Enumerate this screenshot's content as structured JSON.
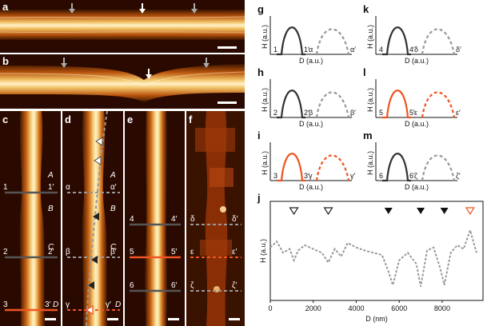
{
  "panels": {
    "a": {
      "label": "a"
    },
    "b": {
      "label": "b"
    },
    "c": {
      "label": "c",
      "marks": [
        "A",
        "B",
        "C",
        "D"
      ],
      "lines": [
        [
          "1",
          "1′"
        ],
        [
          "2",
          "2′"
        ],
        [
          "3",
          "3′"
        ]
      ]
    },
    "d": {
      "label": "d",
      "marks": [
        "A",
        "B",
        "C",
        "D"
      ],
      "lines": [
        [
          "α",
          "α′"
        ],
        [
          "β",
          "β′"
        ],
        [
          "γ",
          "γ′"
        ]
      ]
    },
    "e": {
      "label": "e",
      "lines": [
        [
          "4",
          "4′"
        ],
        [
          "5",
          "5′"
        ],
        [
          "6",
          "6′"
        ]
      ]
    },
    "f": {
      "label": "f",
      "lines": [
        [
          "δ",
          "δ′"
        ],
        [
          "ε",
          "ε′"
        ],
        [
          "ζ",
          "ζ′"
        ]
      ]
    }
  },
  "profiles": [
    {
      "label": "g",
      "solid": "1",
      "solid_end": "1′",
      "dashed": "α",
      "dashed_end": "α′",
      "solid_color": "#333333",
      "dashed_color": "#999999",
      "ylabel": "H (a.u.)",
      "xlabel": "D (a.u.)"
    },
    {
      "label": "h",
      "solid": "2",
      "solid_end": "2′",
      "dashed": "β",
      "dashed_end": "β′",
      "solid_color": "#333333",
      "dashed_color": "#999999",
      "ylabel": "H (a.u.)",
      "xlabel": "D (a.u.)"
    },
    {
      "label": "i",
      "solid": "3",
      "solid_end": "3′",
      "dashed": "γ",
      "dashed_end": "γ′",
      "solid_color": "#ee5522",
      "dashed_color": "#ee5522",
      "ylabel": "H (a.u.)",
      "xlabel": "D (a.u.)"
    },
    {
      "label": "k",
      "solid": "4",
      "solid_end": "4′",
      "dashed": "δ",
      "dashed_end": "δ′",
      "solid_color": "#333333",
      "dashed_color": "#999999",
      "ylabel": "H (a.u.)",
      "xlabel": "D (a.u.)"
    },
    {
      "label": "l",
      "solid": "5",
      "solid_end": "5′",
      "dashed": "ε",
      "dashed_end": "ε′",
      "solid_color": "#ee5522",
      "dashed_color": "#ee5522",
      "ylabel": "H (a.u.)",
      "xlabel": "D (a.u.)"
    },
    {
      "label": "m",
      "solid": "6",
      "solid_end": "6′",
      "dashed": "ζ",
      "dashed_end": "ζ′",
      "solid_color": "#333333",
      "dashed_color": "#999999",
      "ylabel": "H (a.u.)",
      "xlabel": "D (a.u.)"
    }
  ],
  "chart_data": {
    "type": "line",
    "label": "j",
    "xlabel": "D (nm)",
    "ylabel": "H (a.u.)",
    "xlim": [
      0,
      9900
    ],
    "xticks": [
      "0",
      "2000",
      "4000",
      "6000",
      "8000"
    ],
    "x": [
      0,
      300,
      600,
      900,
      1100,
      1300,
      1600,
      2000,
      2400,
      2700,
      3000,
      3300,
      3600,
      4000,
      4400,
      4800,
      5200,
      5500,
      5700,
      6000,
      6400,
      6800,
      7000,
      7300,
      7600,
      7900,
      8100,
      8400,
      8700,
      9000,
      9300,
      9600
    ],
    "y": [
      0.62,
      0.7,
      0.55,
      0.6,
      0.45,
      0.58,
      0.65,
      0.6,
      0.55,
      0.42,
      0.6,
      0.5,
      0.68,
      0.62,
      0.58,
      0.55,
      0.52,
      0.3,
      0.12,
      0.45,
      0.55,
      0.4,
      0.1,
      0.58,
      0.62,
      0.35,
      0.12,
      0.55,
      0.65,
      0.6,
      0.85,
      0.55
    ],
    "markers": [
      {
        "x": 1100,
        "kind": "open",
        "color": "#222222"
      },
      {
        "x": 2700,
        "kind": "open",
        "color": "#222222"
      },
      {
        "x": 5500,
        "kind": "filled",
        "color": "#111111"
      },
      {
        "x": 7000,
        "kind": "filled",
        "color": "#111111"
      },
      {
        "x": 8100,
        "kind": "filled",
        "color": "#111111"
      },
      {
        "x": 9300,
        "kind": "open",
        "color": "#ee5522"
      }
    ]
  },
  "colors": {
    "accent": "#ee5522",
    "grey": "#999999",
    "dark": "#333333"
  }
}
